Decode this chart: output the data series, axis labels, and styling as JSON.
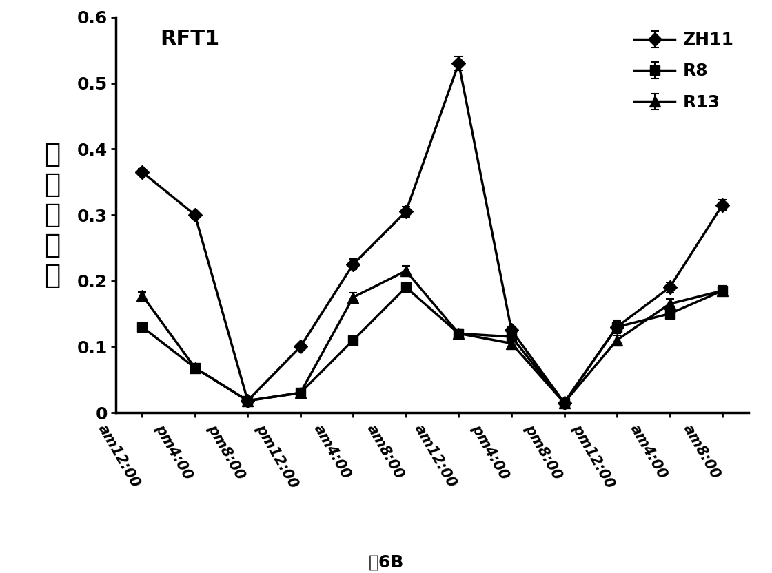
{
  "x_labels": [
    "am12:00",
    "pm4:00",
    "pm8:00",
    "pm12:00",
    "am4:00",
    "am8:00",
    "am12:00",
    "pm4:00",
    "pm8:00",
    "pm12:00",
    "am4:00",
    "am8:00"
  ],
  "ZH11": [
    0.365,
    0.3,
    0.018,
    0.1,
    0.225,
    0.305,
    0.53,
    0.125,
    0.015,
    0.13,
    0.19,
    0.315
  ],
  "R8": [
    0.13,
    0.068,
    0.018,
    0.03,
    0.11,
    0.19,
    0.12,
    0.115,
    0.015,
    0.13,
    0.15,
    0.185
  ],
  "R13": [
    0.178,
    0.068,
    0.018,
    0.03,
    0.175,
    0.215,
    0.12,
    0.105,
    0.015,
    0.11,
    0.165,
    0.185
  ],
  "ZH11_err": [
    0.005,
    0.005,
    0.002,
    0.004,
    0.008,
    0.008,
    0.01,
    0.006,
    0.002,
    0.01,
    0.008,
    0.008
  ],
  "R8_err": [
    0.005,
    0.004,
    0.002,
    0.003,
    0.006,
    0.007,
    0.006,
    0.005,
    0.002,
    0.008,
    0.007,
    0.007
  ],
  "R13_err": [
    0.005,
    0.004,
    0.002,
    0.003,
    0.007,
    0.008,
    0.006,
    0.005,
    0.002,
    0.007,
    0.007,
    0.007
  ],
  "ylim": [
    0,
    0.6
  ],
  "yticks": [
    0,
    0.1,
    0.2,
    0.3,
    0.4,
    0.5,
    0.6
  ],
  "ylabel_chars": [
    "相",
    "对",
    "表",
    "达",
    "量"
  ],
  "annotation": "RFT1",
  "caption": "图6B",
  "color": "#000000",
  "background": "#ffffff"
}
